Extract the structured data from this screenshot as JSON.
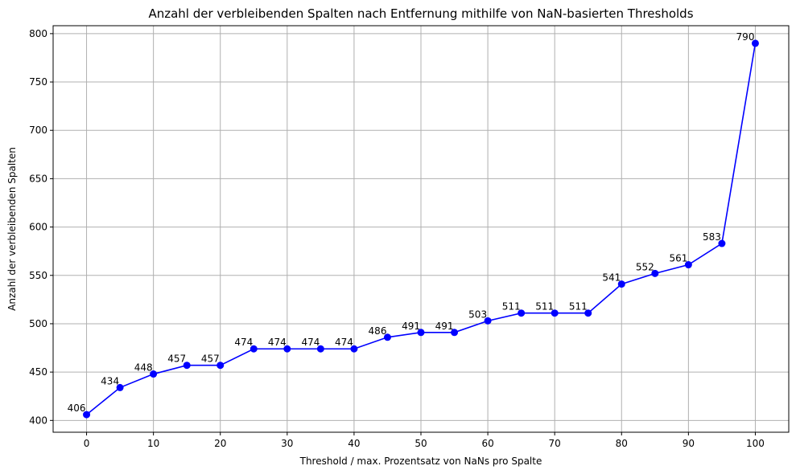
{
  "chart_data": {
    "type": "line",
    "title": "Anzahl der verbleibenden Spalten nach Entfernung mithilfe von NaN-basierten Thresholds",
    "xlabel": "Threshold / max. Prozentsatz von NaNs pro Spalte",
    "ylabel": "Anzahl der verbleibenden Spalten",
    "x": [
      0,
      5,
      10,
      15,
      20,
      25,
      30,
      35,
      40,
      45,
      50,
      55,
      60,
      65,
      70,
      75,
      80,
      85,
      90,
      95,
      100
    ],
    "series": [
      {
        "values": [
          406,
          434,
          448,
          457,
          457,
          474,
          474,
          474,
          474,
          486,
          491,
          491,
          503,
          511,
          511,
          511,
          541,
          552,
          561,
          583,
          790
        ],
        "color": "#0000ff",
        "marker": "circle"
      }
    ],
    "xlim": [
      -5,
      105
    ],
    "ylim": [
      387.8,
      808.2
    ],
    "xticks": [
      0,
      10,
      20,
      30,
      40,
      50,
      60,
      70,
      80,
      90,
      100
    ],
    "yticks": [
      400,
      450,
      500,
      550,
      600,
      650,
      700,
      750,
      800
    ],
    "grid": true,
    "data_labels": true,
    "colors": {
      "line": "#0000ff",
      "grid": "#b0b0b0",
      "axes": "#000000"
    }
  }
}
